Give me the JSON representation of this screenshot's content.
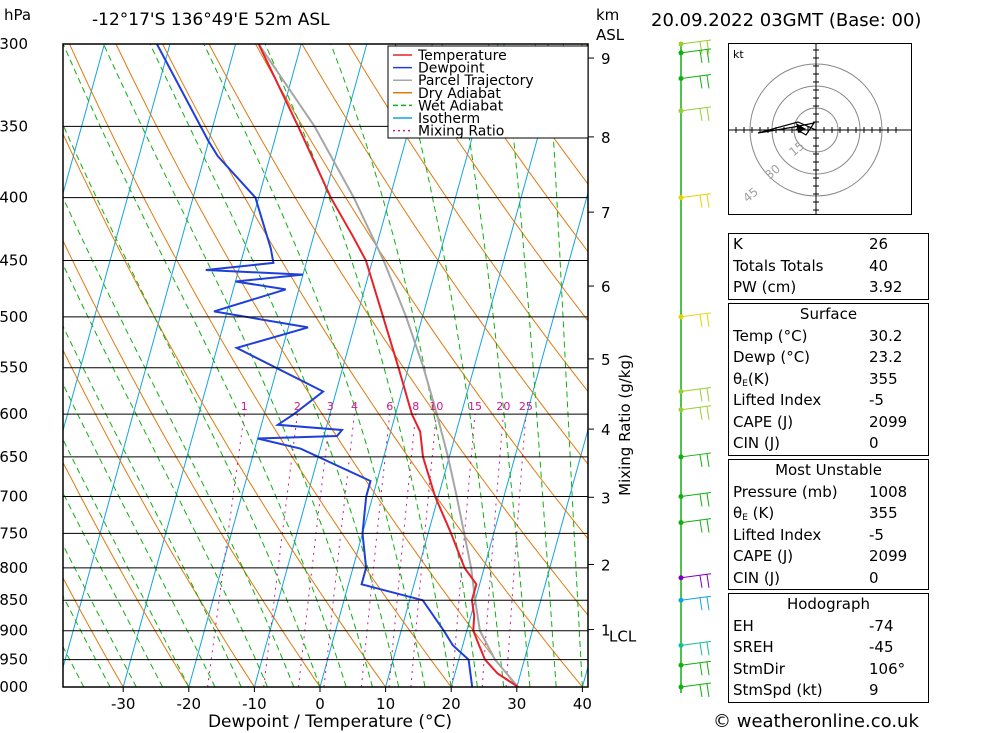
{
  "header": {
    "pressure_unit": "hPa",
    "location": "-12°17'S 136°49'E 52m ASL",
    "height_unit_line1": "km",
    "height_unit_line2": "ASL",
    "datetime": "20.09.2022 03GMT (Base: 00)"
  },
  "chart_data": {
    "type": "line",
    "title": "-12°17'S 136°49'E 52m ASL",
    "xlabel": "Dewpoint / Temperature (°C)",
    "ylabel": "hPa",
    "secondary_ylabel": "Mixing Ratio (g/kg)",
    "xlim": [
      -40,
      40
    ],
    "ylim": [
      1000,
      300
    ],
    "x_ticks": [
      -30,
      -20,
      -10,
      0,
      10,
      20,
      30,
      40
    ],
    "pressure_levels": [
      300,
      350,
      400,
      450,
      500,
      550,
      600,
      650,
      700,
      750,
      800,
      850,
      900,
      950,
      1000
    ],
    "km_labels": [
      {
        "km": "1",
        "p": 898
      },
      {
        "km": "2",
        "p": 795
      },
      {
        "km": "3",
        "p": 701
      },
      {
        "km": "4",
        "p": 617
      },
      {
        "km": "5",
        "p": 541
      },
      {
        "km": "6",
        "p": 472
      },
      {
        "km": "7",
        "p": 411
      },
      {
        "km": "8",
        "p": 357
      },
      {
        "km": "9",
        "p": 308
      }
    ],
    "lcl_label": "LCL",
    "lcl_pressure": 898,
    "mixing_ratio_labels": [
      "1",
      "2",
      "3",
      "4",
      "6",
      "8",
      "10",
      "15",
      "20",
      "25"
    ],
    "legend": [
      "Temperature",
      "Dewpoint",
      "Parcel Trajectory",
      "Dry Adiabat",
      "Wet Adiabat",
      "Isotherm",
      "Mixing Ratio"
    ],
    "legend_colors": [
      "#e8202a",
      "#1f3fd8",
      "#a6a6a6",
      "#e07a10",
      "#10b010",
      "#12a4e0",
      "#d1168c"
    ],
    "temperature_profile": [
      {
        "p": 1000,
        "t": 30.2
      },
      {
        "p": 975,
        "t": 26.5
      },
      {
        "p": 950,
        "t": 24.0
      },
      {
        "p": 925,
        "t": 22.5
      },
      {
        "p": 900,
        "t": 21.0
      },
      {
        "p": 875,
        "t": 20.5
      },
      {
        "p": 850,
        "t": 19.5
      },
      {
        "p": 825,
        "t": 19.5
      },
      {
        "p": 800,
        "t": 17.0
      },
      {
        "p": 750,
        "t": 13.5
      },
      {
        "p": 700,
        "t": 9.5
      },
      {
        "p": 650,
        "t": 6.0
      },
      {
        "p": 620,
        "t": 4.5
      },
      {
        "p": 600,
        "t": 2.5
      },
      {
        "p": 550,
        "t": -1.5
      },
      {
        "p": 500,
        "t": -6.0
      },
      {
        "p": 450,
        "t": -11.0
      },
      {
        "p": 430,
        "t": -14.0
      },
      {
        "p": 400,
        "t": -19.0
      },
      {
        "p": 350,
        "t": -27.0
      },
      {
        "p": 300,
        "t": -36.5
      }
    ],
    "dewpoint_profile": [
      {
        "p": 1000,
        "t": 23.2
      },
      {
        "p": 950,
        "t": 21.5
      },
      {
        "p": 925,
        "t": 18.5
      },
      {
        "p": 900,
        "t": 16.5
      },
      {
        "p": 850,
        "t": 12.0
      },
      {
        "p": 825,
        "t": 2.0
      },
      {
        "p": 800,
        "t": 2.0
      },
      {
        "p": 750,
        "t": 0.0
      },
      {
        "p": 700,
        "t": -1.0
      },
      {
        "p": 680,
        "t": -1.0
      },
      {
        "p": 640,
        "t": -13.0
      },
      {
        "p": 628,
        "t": -20.0
      },
      {
        "p": 625,
        "t": -8.0
      },
      {
        "p": 618,
        "t": -7.5
      },
      {
        "p": 612,
        "t": -17.5
      },
      {
        "p": 600,
        "t": -15.5
      },
      {
        "p": 575,
        "t": -12.0
      },
      {
        "p": 530,
        "t": -27.0
      },
      {
        "p": 510,
        "t": -17.0
      },
      {
        "p": 495,
        "t": -32.0
      },
      {
        "p": 475,
        "t": -22.0
      },
      {
        "p": 468,
        "t": -30.0
      },
      {
        "p": 462,
        "t": -20.0
      },
      {
        "p": 458,
        "t": -35.0
      },
      {
        "p": 452,
        "t": -25.0
      },
      {
        "p": 440,
        "t": -26.0
      },
      {
        "p": 400,
        "t": -30.5
      },
      {
        "p": 370,
        "t": -38.0
      },
      {
        "p": 360,
        "t": -40.0
      },
      {
        "p": 300,
        "t": -52.0
      }
    ],
    "parcel_trajectory": [
      {
        "p": 1000,
        "t": 30.2
      },
      {
        "p": 950,
        "t": 25.5
      },
      {
        "p": 900,
        "t": 22.0
      },
      {
        "p": 850,
        "t": 20.0
      },
      {
        "p": 800,
        "t": 18.0
      },
      {
        "p": 750,
        "t": 15.5
      },
      {
        "p": 700,
        "t": 12.8
      },
      {
        "p": 650,
        "t": 9.8
      },
      {
        "p": 600,
        "t": 6.3
      },
      {
        "p": 550,
        "t": 2.3
      },
      {
        "p": 500,
        "t": -2.5
      },
      {
        "p": 450,
        "t": -8.3
      },
      {
        "p": 400,
        "t": -15.5
      },
      {
        "p": 350,
        "t": -24.5
      },
      {
        "p": 300,
        "t": -36.5
      }
    ],
    "wind_profile": [
      {
        "p": 300,
        "color": "#9acd32"
      },
      {
        "p": 305,
        "color": "#10b010"
      },
      {
        "p": 320,
        "color": "#10b010"
      },
      {
        "p": 340,
        "color": "#9acd32"
      },
      {
        "p": 400,
        "color": "#e6d200"
      },
      {
        "p": 500,
        "color": "#e6d200"
      },
      {
        "p": 575,
        "color": "#9acd32"
      },
      {
        "p": 595,
        "color": "#9acd32"
      },
      {
        "p": 650,
        "color": "#10b010"
      },
      {
        "p": 700,
        "color": "#10b010"
      },
      {
        "p": 735,
        "color": "#10b010"
      },
      {
        "p": 815,
        "color": "#8000c0"
      },
      {
        "p": 850,
        "color": "#12a4e0"
      },
      {
        "p": 925,
        "color": "#10c0a0"
      },
      {
        "p": 960,
        "color": "#10b010"
      },
      {
        "p": 1000,
        "color": "#10b010"
      }
    ]
  },
  "hodograph": {
    "unit": "kt",
    "ring_labels": [
      "15",
      "30",
      "45"
    ]
  },
  "indices": {
    "k": {
      "label": "K",
      "value": "26"
    },
    "tt": {
      "label": "Totals Totals",
      "value": "40"
    },
    "pw": {
      "label": "PW (cm)",
      "value": "3.92"
    }
  },
  "surface": {
    "title": "Surface",
    "temp": {
      "label": "Temp (°C)",
      "value": "30.2"
    },
    "dewp": {
      "label": "Dewp (°C)",
      "value": "23.2"
    },
    "theta_e": {
      "label_main": "θ",
      "label_sub": "E",
      "label_rest": "(K)",
      "value": "355"
    },
    "lifted_index": {
      "label": "Lifted Index",
      "value": "-5"
    },
    "cape": {
      "label": "CAPE (J)",
      "value": "2099"
    },
    "cin": {
      "label": "CIN (J)",
      "value": "0"
    }
  },
  "most_unstable": {
    "title": "Most Unstable",
    "pressure": {
      "label": "Pressure (mb)",
      "value": "1008"
    },
    "theta_e": {
      "label_main": "θ",
      "label_sub": "E",
      "label_rest": " (K)",
      "value": "355"
    },
    "lifted_index": {
      "label": "Lifted Index",
      "value": "-5"
    },
    "cape": {
      "label": "CAPE (J)",
      "value": "2099"
    },
    "cin": {
      "label": "CIN (J)",
      "value": "0"
    }
  },
  "hodo_table": {
    "title": "Hodograph",
    "eh": {
      "label": "EH",
      "value": "-74"
    },
    "sreh": {
      "label": "SREH",
      "value": "-45"
    },
    "stmdir": {
      "label": "StmDir",
      "value": "106°"
    },
    "stmspd": {
      "label": "StmSpd (kt)",
      "value": "9"
    }
  },
  "footer": {
    "copyright": "© weatheronline.co.uk"
  }
}
